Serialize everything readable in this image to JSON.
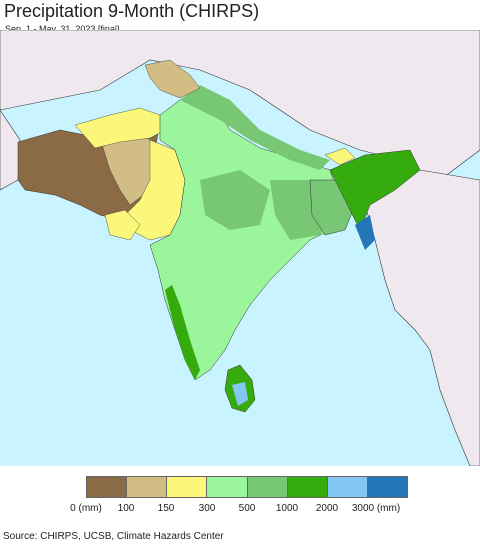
{
  "title": "Precipitation 9-Month (CHIRPS)",
  "subtitle": "Sep. 1 - May. 31, 2023 [final]",
  "legend": {
    "colors": [
      "#8b6a46",
      "#d2bd85",
      "#fbf77a",
      "#9bf69b",
      "#78c775",
      "#35ab0e",
      "#85c7f4",
      "#2476b6"
    ],
    "ticks": [
      "0 (mm)",
      "100",
      "150",
      "300",
      "500",
      "1000",
      "2000",
      "3000 (mm)"
    ]
  },
  "map": {
    "ocean_color": "#c9f3ff",
    "outside_land_color": "#efe9ef"
  },
  "source": "Source: CHIRPS, UCSB, Climate Hazards Center"
}
